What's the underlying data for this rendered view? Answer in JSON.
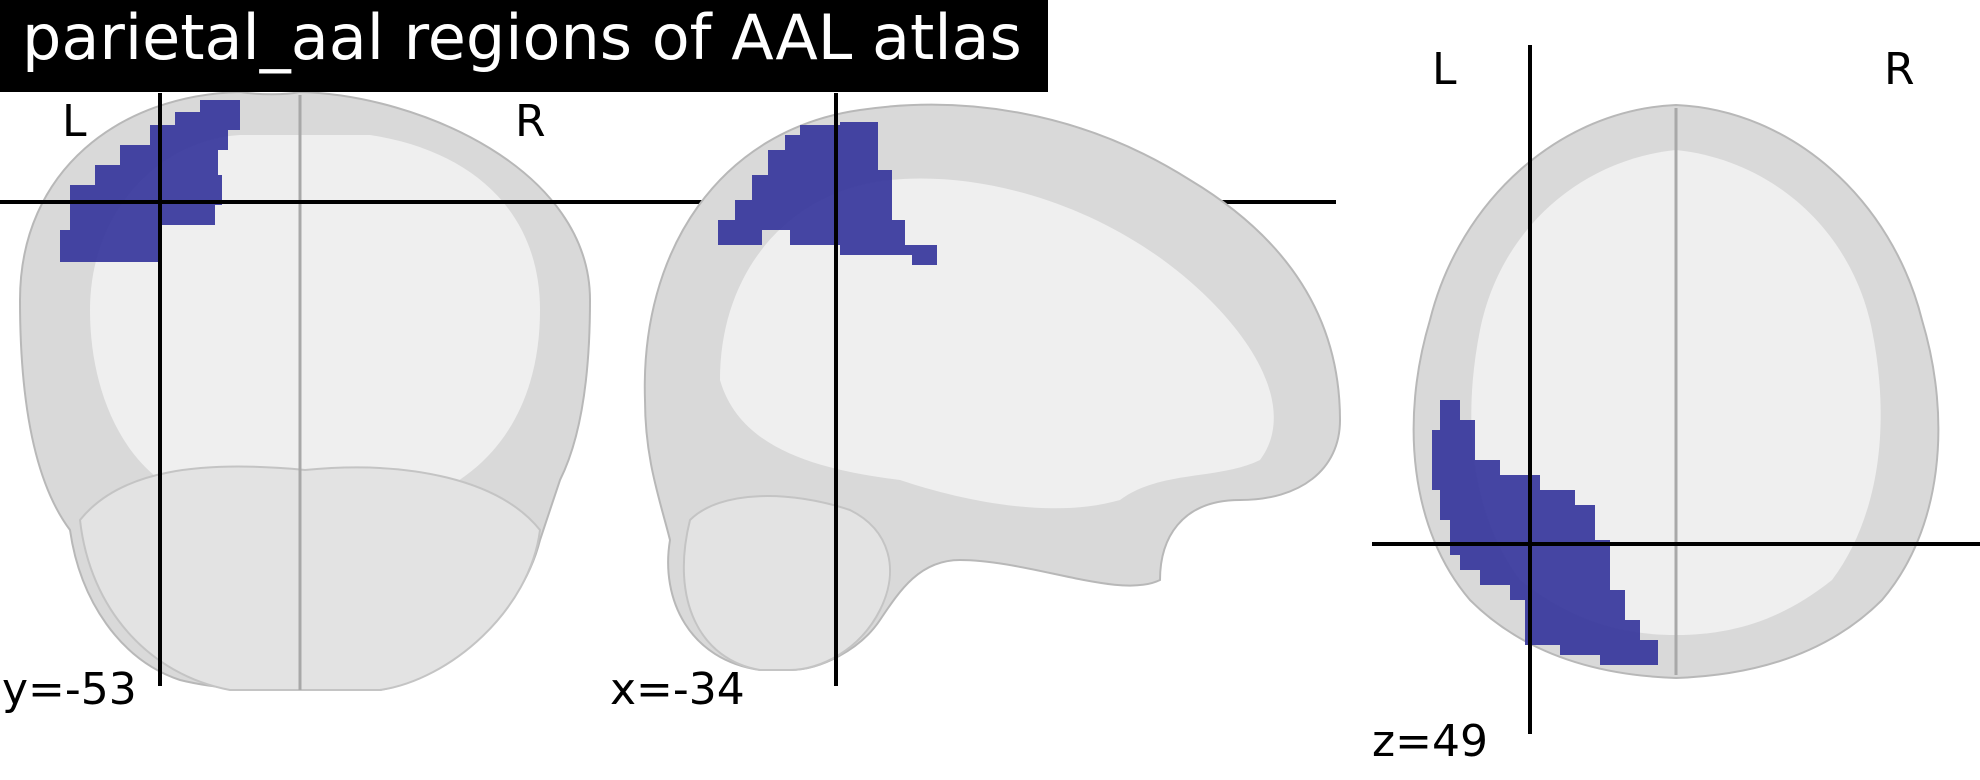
{
  "title": "parietal_aal regions of AAL atlas",
  "views": [
    {
      "name": "coronal",
      "coord_label": "y=-53",
      "left_label": "L",
      "right_label": "R"
    },
    {
      "name": "sagittal",
      "coord_label": "x=-34"
    },
    {
      "name": "axial",
      "coord_label": "z=49",
      "left_label": "L",
      "right_label": "R"
    }
  ],
  "colors": {
    "background": "#ffffff",
    "title_bg": "#000000",
    "title_text": "#ffffff",
    "brain_gray": "#d8d8d8",
    "brain_white": "#f0f0f0",
    "overlay_blue": "#3a3a9a",
    "crosshair": "#000000"
  }
}
